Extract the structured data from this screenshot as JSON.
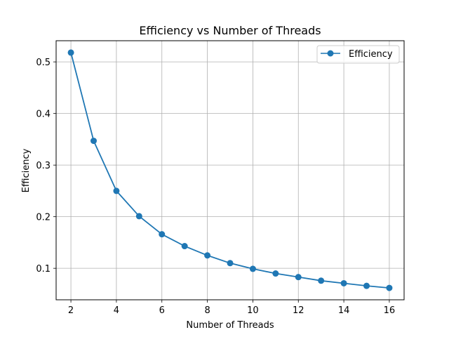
{
  "chart_data": {
    "type": "line",
    "title": "Efficiency vs Number of Threads",
    "xlabel": "Number of Threads",
    "ylabel": "Efficiency",
    "x": [
      2,
      3,
      4,
      5,
      6,
      7,
      8,
      9,
      10,
      11,
      12,
      13,
      14,
      15,
      16
    ],
    "series": [
      {
        "name": "Efficiency",
        "color": "#1f77b4",
        "marker": "circle",
        "values": [
          0.518,
          0.347,
          0.25,
          0.201,
          0.166,
          0.143,
          0.125,
          0.11,
          0.099,
          0.09,
          0.083,
          0.076,
          0.071,
          0.066,
          0.062
        ]
      }
    ],
    "xlim": [
      1.35,
      16.65
    ],
    "ylim": [
      0.039,
      0.541
    ],
    "xticks": [
      2,
      4,
      6,
      8,
      10,
      12,
      14,
      16
    ],
    "xtick_labels": [
      "2",
      "4",
      "6",
      "8",
      "10",
      "12",
      "14",
      "16"
    ],
    "yticks": [
      0.1,
      0.2,
      0.3,
      0.4,
      0.5
    ],
    "ytick_labels": [
      "0.1",
      "0.2",
      "0.3",
      "0.4",
      "0.5"
    ],
    "grid": true,
    "legend_position": "top-right"
  }
}
